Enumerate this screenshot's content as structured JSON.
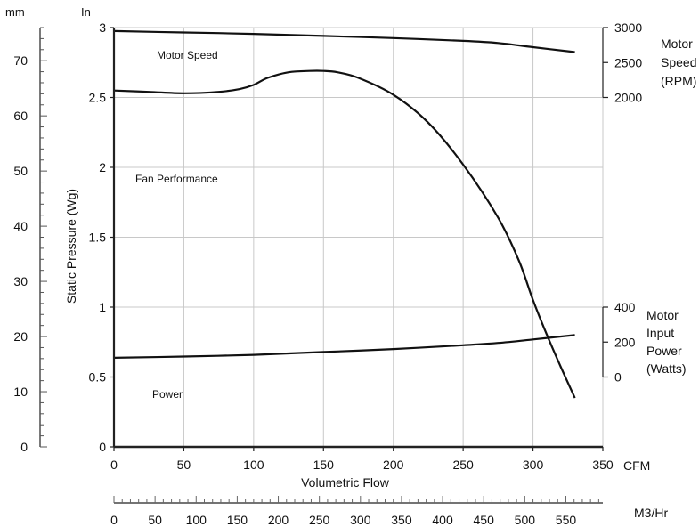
{
  "chart_data": {
    "type": "line",
    "xlabel": "Volumetric Flow",
    "ylabel": "Static Pressure (Wg)",
    "x_unit": "CFM",
    "x_ticks": [
      0,
      50,
      100,
      150,
      200,
      250,
      300,
      350
    ],
    "xlim": [
      0,
      350
    ],
    "y_unit": "In",
    "y_ticks": [
      0,
      0.5,
      1,
      1.5,
      2,
      2.5,
      3
    ],
    "ylim": [
      0,
      3
    ],
    "grid": true,
    "mm_axis": {
      "unit": "mm",
      "ticks": [
        0,
        10,
        20,
        30,
        40,
        50,
        60,
        70
      ],
      "range": [
        0,
        76
      ]
    },
    "m3hr_axis": {
      "unit": "M3/Hr",
      "ticks": [
        0,
        50,
        100,
        150,
        200,
        250,
        300,
        350,
        400,
        450,
        500,
        550
      ],
      "range": [
        0,
        595
      ]
    },
    "rpm_axis": {
      "label_lines": [
        "Motor",
        "Speed",
        "(RPM)"
      ],
      "ticks": [
        2000,
        2500,
        3000
      ],
      "range": [
        2000,
        3000
      ]
    },
    "power_axis": {
      "label_lines": [
        "Motor",
        "Input",
        "Power",
        "(Watts)"
      ],
      "ticks": [
        0,
        200,
        400
      ],
      "range": [
        0,
        400
      ]
    },
    "series": [
      {
        "name": "Motor Speed",
        "axis": "rpm",
        "x": [
          0,
          50,
          100,
          150,
          200,
          250,
          275,
          300,
          330
        ],
        "y": [
          2950,
          2930,
          2910,
          2880,
          2850,
          2810,
          2780,
          2720,
          2650
        ]
      },
      {
        "name": "Fan Performance",
        "axis": "pressure",
        "x": [
          0,
          25,
          50,
          75,
          90,
          100,
          110,
          125,
          140,
          150,
          160,
          175,
          200,
          225,
          250,
          275,
          290,
          300,
          310,
          320,
          330
        ],
        "y": [
          2.55,
          2.54,
          2.53,
          2.54,
          2.56,
          2.59,
          2.64,
          2.68,
          2.69,
          2.69,
          2.68,
          2.64,
          2.52,
          2.32,
          2.02,
          1.64,
          1.33,
          1.05,
          0.8,
          0.57,
          0.35
        ]
      },
      {
        "name": "Power",
        "axis": "power",
        "x": [
          0,
          50,
          100,
          150,
          200,
          250,
          275,
          300,
          330
        ],
        "y": [
          110,
          117,
          127,
          143,
          160,
          182,
          195,
          215,
          240
        ]
      }
    ]
  }
}
